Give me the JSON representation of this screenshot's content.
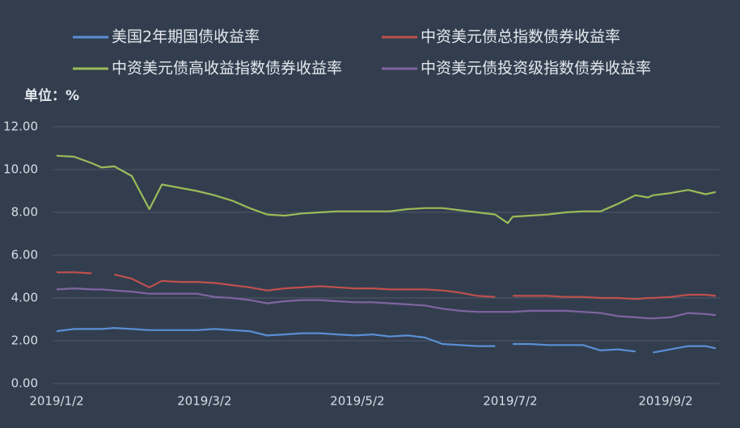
{
  "chart_data": {
    "type": "line",
    "unit_label": "单位：%",
    "legend": "top",
    "grid": true,
    "x": [
      "2019/1/2",
      "2019/1/9",
      "2019/1/16",
      "2019/1/20",
      "2019/1/25",
      "2019/2/1",
      "2019/2/8",
      "2019/2/13",
      "2019/2/20",
      "2019/2/27",
      "2019/3/6",
      "2019/3/13",
      "2019/3/20",
      "2019/3/27",
      "2019/4/3",
      "2019/4/10",
      "2019/4/17",
      "2019/4/24",
      "2019/5/1",
      "2019/5/8",
      "2019/5/15",
      "2019/5/22",
      "2019/5/29",
      "2019/6/5",
      "2019/6/12",
      "2019/6/19",
      "2019/6/26",
      "2019/7/1",
      "2019/7/3",
      "2019/7/10",
      "2019/7/17",
      "2019/7/24",
      "2019/7/31",
      "2019/8/7",
      "2019/8/14",
      "2019/8/21",
      "2019/8/26",
      "2019/8/28",
      "2019/9/4",
      "2019/9/11",
      "2019/9/18",
      "2019/9/22"
    ],
    "xlim": [
      "2019/1/2",
      "2019/9/22"
    ],
    "xticks": [
      "2019/1/2",
      "2019/3/2",
      "2019/5/2",
      "2019/7/2",
      "2019/9/2"
    ],
    "ylim": [
      0,
      12
    ],
    "yticks": [
      {
        "value": 0,
        "label": "0.00"
      },
      {
        "value": 2,
        "label": "2.00"
      },
      {
        "value": 4,
        "label": "4.00"
      },
      {
        "value": 6,
        "label": "6.00"
      },
      {
        "value": 8,
        "label": "8.00"
      },
      {
        "value": 10,
        "label": "10.00"
      },
      {
        "value": 12,
        "label": "12.00"
      }
    ],
    "series": [
      {
        "name": "美国2年期国债收益率",
        "color": "#5b8fd6",
        "values": [
          2.45,
          2.55,
          2.55,
          2.55,
          2.6,
          2.55,
          2.5,
          2.5,
          2.5,
          2.5,
          2.55,
          2.5,
          2.45,
          2.25,
          2.3,
          2.35,
          2.35,
          2.3,
          2.25,
          2.3,
          2.2,
          2.25,
          2.15,
          1.85,
          1.8,
          1.75,
          1.75,
          null,
          1.85,
          1.85,
          1.8,
          1.8,
          1.8,
          1.55,
          1.6,
          1.5,
          null,
          1.45,
          1.6,
          1.75,
          1.75,
          1.65
        ]
      },
      {
        "name": "中资美元债总指数债券收益率",
        "color": "#c0504d",
        "values": [
          5.2,
          5.2,
          5.15,
          null,
          5.1,
          4.9,
          4.5,
          4.8,
          4.75,
          4.75,
          4.7,
          4.6,
          4.5,
          4.35,
          4.45,
          4.5,
          4.55,
          4.5,
          4.45,
          4.45,
          4.4,
          4.4,
          4.4,
          4.35,
          4.25,
          4.1,
          4.05,
          null,
          4.1,
          4.1,
          4.1,
          4.05,
          4.05,
          4.0,
          4.0,
          3.95,
          4.0,
          4.0,
          4.05,
          4.15,
          4.15,
          4.1
        ]
      },
      {
        "name": "中资美元债高收益指数债券收益率",
        "color": "#9bbb59",
        "values": [
          10.65,
          10.6,
          10.3,
          10.1,
          10.15,
          9.7,
          8.15,
          9.3,
          9.15,
          9.0,
          8.8,
          8.55,
          8.2,
          7.9,
          7.85,
          7.95,
          8.0,
          8.05,
          8.05,
          8.05,
          8.05,
          8.15,
          8.2,
          8.2,
          8.1,
          8.0,
          7.9,
          7.5,
          7.8,
          7.85,
          7.9,
          8.0,
          8.05,
          8.05,
          8.4,
          8.8,
          8.7,
          8.8,
          8.9,
          9.05,
          8.85,
          8.95
        ]
      },
      {
        "name": "中资美元债投资级指数债券收益率",
        "color": "#8064a2",
        "values": [
          4.4,
          4.45,
          4.4,
          4.4,
          4.35,
          4.3,
          4.2,
          4.2,
          4.2,
          4.2,
          4.05,
          4.0,
          3.9,
          3.75,
          3.85,
          3.9,
          3.9,
          3.85,
          3.8,
          3.8,
          3.75,
          3.7,
          3.65,
          3.5,
          3.4,
          3.35,
          3.35,
          3.35,
          3.35,
          3.4,
          3.4,
          3.4,
          3.35,
          3.3,
          3.15,
          3.1,
          3.05,
          3.05,
          3.1,
          3.3,
          3.25,
          3.2
        ]
      }
    ]
  }
}
